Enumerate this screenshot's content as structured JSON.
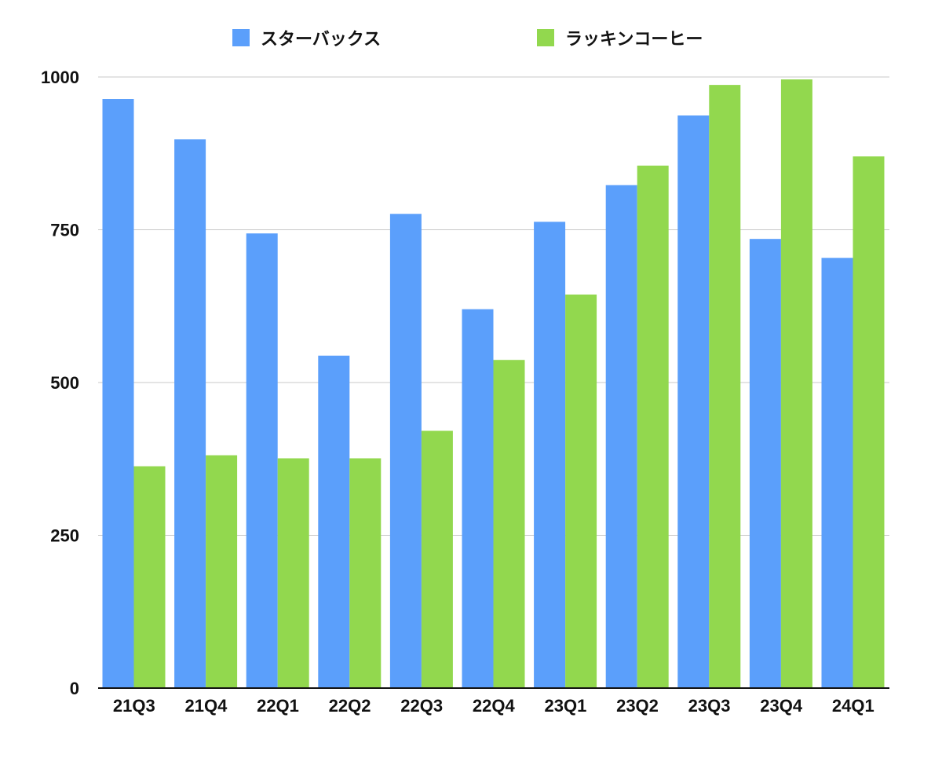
{
  "chart_data": {
    "type": "bar",
    "categories": [
      "21Q3",
      "21Q4",
      "22Q1",
      "22Q2",
      "22Q3",
      "22Q4",
      "23Q1",
      "23Q2",
      "23Q3",
      "23Q4",
      "24Q1"
    ],
    "series": [
      {
        "name": "スターバックス",
        "color": "#5b9ffb",
        "values": [
          964,
          898,
          744,
          544,
          776,
          620,
          763,
          823,
          937,
          735,
          704
        ]
      },
      {
        "name": "ラッキンコーヒー",
        "color": "#92d84e",
        "values": [
          363,
          381,
          376,
          376,
          421,
          537,
          644,
          855,
          987,
          996,
          870
        ]
      }
    ],
    "ylim": [
      0,
      1000
    ],
    "yticks": [
      0,
      250,
      500,
      750,
      1000
    ],
    "grid": true,
    "legend_position": "top"
  }
}
